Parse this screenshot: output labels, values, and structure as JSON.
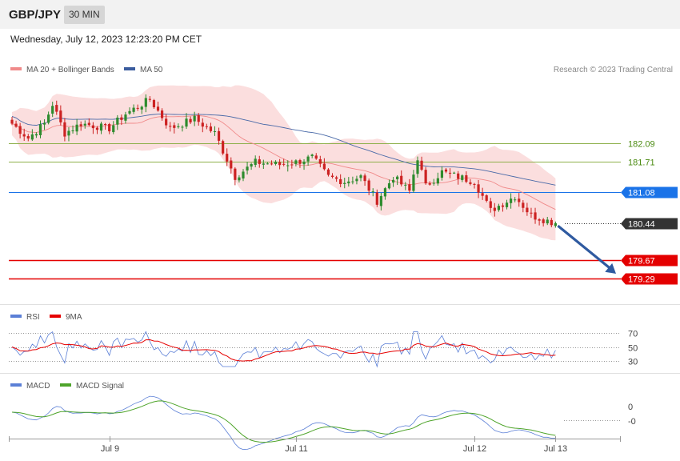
{
  "header": {
    "symbol": "GBP/JPY",
    "timeframe": "30 MIN",
    "datetime": "Wednesday, July 12, 2023 12:23:20 PM CET"
  },
  "colors": {
    "bb_fill": "#fbdede",
    "ma20": "#f08a8a",
    "ma50": "#4a6aa8",
    "bull": "#2e8b2e",
    "bear": "#cc2222",
    "support": "#e40000",
    "pivot": "#1a73e8",
    "resistance": "#8db04a",
    "last": "#333333",
    "arrow": "#2f5aa0",
    "rsi": "#5b7fd6",
    "rsi_ma": "#e60000",
    "macd": "#5b7fd6",
    "macd_signal": "#4ea42a"
  },
  "main_legend": {
    "ma20_label": "MA 20 + Bollinger Bands",
    "ma50_label": "MA 50",
    "copyright": "Research © 2023 Trading Central"
  },
  "rsi_legend": {
    "rsi_label": "RSI",
    "ma_label": "9MA"
  },
  "macd_legend": {
    "macd_label": "MACD",
    "signal_label": "MACD Signal"
  },
  "chart_data": {
    "type": "candlestick",
    "title": "",
    "price_range": [
      178.8,
      183.4
    ],
    "levels": [
      {
        "value": 182.09,
        "label": "182.09",
        "kind": "resistance"
      },
      {
        "value": 181.71,
        "label": "181.71",
        "kind": "resistance"
      },
      {
        "value": 181.08,
        "label": "181.08",
        "kind": "pivot"
      },
      {
        "value": 180.44,
        "label": "180.44",
        "kind": "last"
      },
      {
        "value": 179.67,
        "label": "179.67",
        "kind": "support"
      },
      {
        "value": 179.29,
        "label": "179.29",
        "kind": "support"
      }
    ],
    "forecast_arrow": {
      "from": 180.42,
      "to": 179.33
    },
    "x_ticks": [
      {
        "label": "Jul 9",
        "index": 24
      },
      {
        "label": "Jul 11",
        "index": 70
      },
      {
        "label": "Jul 12",
        "index": 114
      },
      {
        "label": "Jul 13",
        "index": 134
      }
    ],
    "candles": {
      "anchors": [
        [
          0,
          182.5
        ],
        [
          4,
          182.2
        ],
        [
          8,
          182.5
        ],
        [
          10,
          182.9
        ],
        [
          13,
          182.3
        ],
        [
          17,
          182.5
        ],
        [
          24,
          182.4
        ],
        [
          28,
          182.7
        ],
        [
          34,
          183.0
        ],
        [
          39,
          182.4
        ],
        [
          45,
          182.6
        ],
        [
          50,
          182.3
        ],
        [
          55,
          181.4
        ],
        [
          60,
          181.7
        ],
        [
          66,
          181.65
        ],
        [
          70,
          181.7
        ],
        [
          74,
          181.8
        ],
        [
          78,
          181.4
        ],
        [
          82,
          181.3
        ],
        [
          86,
          181.4
        ],
        [
          90,
          180.9
        ],
        [
          94,
          181.4
        ],
        [
          98,
          181.1
        ],
        [
          100,
          181.8
        ],
        [
          102,
          181.2
        ],
        [
          106,
          181.5
        ],
        [
          110,
          181.4
        ],
        [
          114,
          181.3
        ],
        [
          118,
          180.7
        ],
        [
          124,
          181.0
        ],
        [
          128,
          180.6
        ],
        [
          134,
          180.44
        ]
      ],
      "count": 135
    },
    "rsi": {
      "levels": [
        70,
        50,
        30
      ],
      "range": [
        20,
        80
      ]
    },
    "macd": {
      "levels": [
        "0",
        "-0"
      ]
    }
  }
}
